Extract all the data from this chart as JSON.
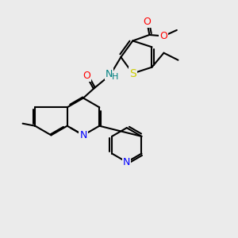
{
  "bg_color": "#ebebeb",
  "bond_color": "#000000",
  "bond_width": 1.5,
  "atom_colors": {
    "S": "#cccc00",
    "N": "#0000ff",
    "O": "#ff0000",
    "NH": "#008080",
    "C": "#000000"
  },
  "font_size": 9,
  "fig_size": [
    3.0,
    3.0
  ],
  "dpi": 100
}
